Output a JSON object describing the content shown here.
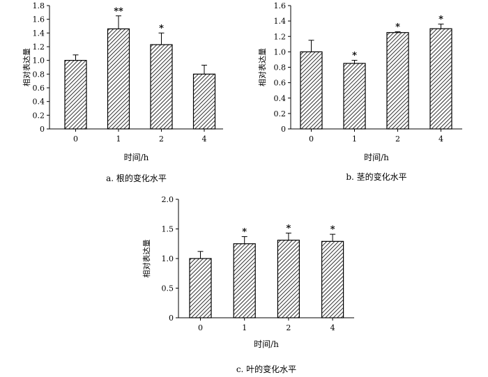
{
  "chart_data": [
    {
      "type": "bar",
      "categories": [
        "0",
        "1",
        "2",
        "4"
      ],
      "values": [
        1.0,
        1.46,
        1.23,
        0.8
      ],
      "errors": [
        0.08,
        0.19,
        0.17,
        0.13
      ],
      "significance": [
        "",
        "**",
        "*",
        ""
      ],
      "ylabel": "相对表达量",
      "xlabel": "时间/h",
      "caption": "a.  根的变化水平",
      "ylim": [
        0,
        1.8
      ],
      "yticks": [
        "0",
        "0.2",
        "0.4",
        "0.6",
        "0.8",
        "1.0",
        "1.2",
        "1.4",
        "1.6",
        "1.8"
      ]
    },
    {
      "type": "bar",
      "categories": [
        "0",
        "1",
        "2",
        "4"
      ],
      "values": [
        1.0,
        0.85,
        1.25,
        1.3
      ],
      "errors": [
        0.15,
        0.04,
        0.01,
        0.06
      ],
      "significance": [
        "",
        "*",
        "*",
        "*"
      ],
      "ylabel": "相对表达量",
      "xlabel": "时间/h",
      "caption": "b.  茎的变化水平",
      "ylim": [
        0,
        1.6
      ],
      "yticks": [
        "0",
        "0.2",
        "0.4",
        "0.6",
        "0.8",
        "1.0",
        "1.2",
        "1.4",
        "1.6"
      ]
    },
    {
      "type": "bar",
      "categories": [
        "0",
        "1",
        "2",
        "4"
      ],
      "values": [
        1.0,
        1.25,
        1.31,
        1.29
      ],
      "errors": [
        0.12,
        0.12,
        0.12,
        0.12
      ],
      "significance": [
        "",
        "*",
        "*",
        "*"
      ],
      "ylabel": "相对表达量",
      "xlabel": "时间/h",
      "caption": "c.  叶的变化水平",
      "ylim": [
        0,
        2.0
      ],
      "yticks": [
        "0",
        "0.5",
        "1.0",
        "1.5",
        "2.0"
      ]
    }
  ]
}
